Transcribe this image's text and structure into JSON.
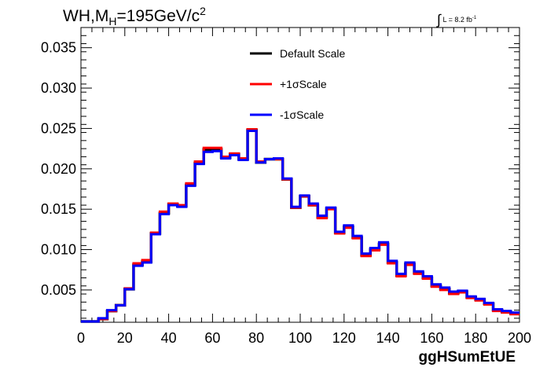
{
  "title": {
    "prefix": "WH,M",
    "sub": "H",
    "mid": "=195GeV/c",
    "sup": "2"
  },
  "luminosity": {
    "integral": "∫",
    "text": "L = 8.2 fb",
    "sup": "-1"
  },
  "chart_data": {
    "type": "line",
    "style": "step-histogram",
    "xlabel": "ggHSumEtUE",
    "ylabel": "",
    "xlim": [
      0,
      200
    ],
    "ylim": [
      0.001,
      0.0375
    ],
    "x_ticks": [
      "0",
      "20",
      "40",
      "60",
      "80",
      "100",
      "120",
      "140",
      "160",
      "180",
      "200"
    ],
    "x_tick_values": [
      0,
      20,
      40,
      60,
      80,
      100,
      120,
      140,
      160,
      180,
      200
    ],
    "y_ticks": [
      "0.005",
      "0.010",
      "0.015",
      "0.020",
      "0.025",
      "0.030",
      "0.035"
    ],
    "y_tick_values": [
      0.005,
      0.01,
      0.015,
      0.02,
      0.025,
      0.03,
      0.035
    ],
    "bin_edges": [
      0,
      4,
      8,
      12,
      16,
      20,
      24,
      28,
      32,
      36,
      40,
      44,
      48,
      52,
      56,
      60,
      64,
      68,
      72,
      76,
      80,
      84,
      88,
      92,
      96,
      100,
      104,
      108,
      112,
      116,
      120,
      124,
      128,
      132,
      136,
      140,
      144,
      148,
      152,
      156,
      160,
      164,
      168,
      172,
      176,
      180,
      184,
      188,
      192,
      196,
      200
    ],
    "series": [
      {
        "name": "Default Scale",
        "color": "#000000",
        "values": [
          0.0011,
          0.0011,
          0.0014,
          0.0024,
          0.0031,
          0.0051,
          0.0081,
          0.0085,
          0.012,
          0.0145,
          0.0156,
          0.0154,
          0.018,
          0.0207,
          0.0224,
          0.0224,
          0.0214,
          0.0218,
          0.0212,
          0.0248,
          0.0208,
          0.0212,
          0.0212,
          0.0187,
          0.0152,
          0.0166,
          0.0155,
          0.014,
          0.0151,
          0.0121,
          0.0128,
          0.0115,
          0.0093,
          0.01,
          0.0107,
          0.0084,
          0.0068,
          0.0082,
          0.0071,
          0.0065,
          0.0055,
          0.0051,
          0.0046,
          0.0048,
          0.0041,
          0.0038,
          0.0033,
          0.0025,
          0.0023,
          0.0021
        ]
      },
      {
        "name": "+1σScale",
        "color": "#ff0000",
        "values": [
          0.0011,
          0.0011,
          0.0014,
          0.0024,
          0.0031,
          0.0052,
          0.0083,
          0.0087,
          0.0121,
          0.0147,
          0.0157,
          0.0155,
          0.0182,
          0.0209,
          0.0226,
          0.0226,
          0.0215,
          0.0219,
          0.0213,
          0.0249,
          0.0209,
          0.0212,
          0.0212,
          0.0187,
          0.0152,
          0.0166,
          0.0155,
          0.0139,
          0.015,
          0.012,
          0.0127,
          0.0114,
          0.0092,
          0.0099,
          0.0106,
          0.0083,
          0.0067,
          0.0081,
          0.007,
          0.0064,
          0.0054,
          0.005,
          0.0045,
          0.0047,
          0.004,
          0.0037,
          0.0032,
          0.0024,
          0.0022,
          0.002
        ]
      },
      {
        "name": "-1σScale",
        "color": "#0000ff",
        "values": [
          0.0011,
          0.0011,
          0.0015,
          0.0025,
          0.0031,
          0.0051,
          0.008,
          0.0084,
          0.0119,
          0.0144,
          0.0155,
          0.0153,
          0.0179,
          0.0206,
          0.0221,
          0.0222,
          0.0213,
          0.0217,
          0.0211,
          0.0247,
          0.0208,
          0.0212,
          0.0213,
          0.0188,
          0.0153,
          0.0167,
          0.0157,
          0.0142,
          0.0152,
          0.0122,
          0.013,
          0.0117,
          0.0095,
          0.0102,
          0.0109,
          0.0086,
          0.007,
          0.0084,
          0.0073,
          0.0067,
          0.0057,
          0.0053,
          0.0048,
          0.0049,
          0.0042,
          0.0039,
          0.0034,
          0.0026,
          0.0024,
          0.0022
        ]
      }
    ],
    "legend_placement": "top-center",
    "grid": false
  }
}
